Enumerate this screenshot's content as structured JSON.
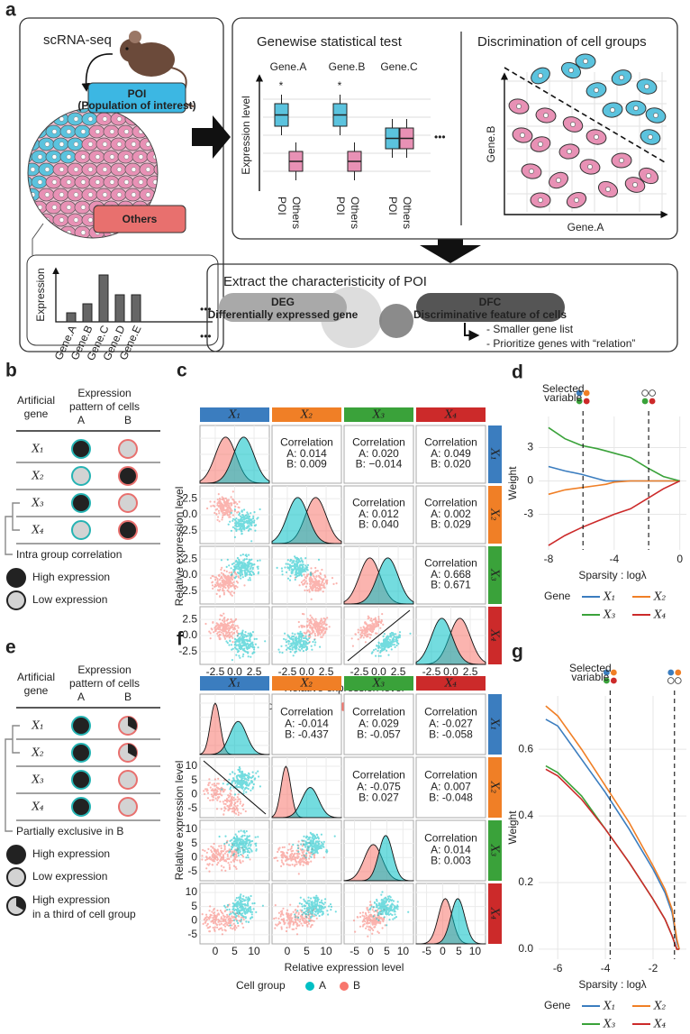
{
  "a": {
    "label": "a",
    "scrna": "scRNA-seq",
    "poi": "POI",
    "poi_note": "(Population of interest)",
    "others": "Others",
    "bar_axis": "Expression",
    "bar_genes": [
      "Gene.A",
      "Gene.B",
      "Gene.C",
      "Gene.D",
      "Gene.E"
    ],
    "more": "•••",
    "test_title": "Genewise statistical test",
    "test_axis": "Expression level",
    "test_genes": [
      "Gene.A",
      "Gene.B",
      "Gene.C"
    ],
    "star": "*",
    "groups": [
      "POI",
      "Others"
    ],
    "disc_title": "Discrimination of cell groups",
    "disc_x": "Gene.A",
    "disc_y": "Gene.B",
    "extract_title": "Extract the characteristicity of POI",
    "deg": "DEG",
    "deg_note": "Differentially expressed gene",
    "dfc": "DFC",
    "dfc_note": "Discriminative feature of cells",
    "bullets": [
      "- Smaller gene list",
      "- Prioritize genes with “relation”"
    ]
  },
  "b": {
    "label": "b",
    "gene_header": [
      "Artificial",
      "gene"
    ],
    "pattern_header": [
      "Expression",
      "pattern of cells"
    ],
    "groups": [
      "A",
      "B"
    ],
    "genes": [
      "X₁",
      "X₂",
      "X₃",
      "X₄"
    ],
    "note": "Intra group correlation",
    "legend": [
      "High expression",
      "Low expression"
    ]
  },
  "c": {
    "label": "c",
    "strips": [
      "X₁",
      "X₂",
      "X₃",
      "X₄"
    ],
    "corr_title": "Correlation",
    "corr": [
      [
        "A: 0.014",
        "B: 0.009"
      ],
      [
        "A: 0.020",
        "B: −0.014"
      ],
      [
        "A: 0.049",
        "B: 0.020"
      ],
      [
        "A: 0.012",
        "B: 0.040"
      ],
      [
        "A: 0.002",
        "B: 0.029"
      ],
      [
        "A: 0.668",
        "B: 0.671"
      ]
    ],
    "xticks": [
      [
        "-2.5",
        "0.0",
        "2.5"
      ],
      [
        "-2.5",
        "0.0",
        "2.5"
      ],
      [
        "-2.5",
        "0.0",
        "2.5"
      ],
      [
        "-2.5",
        "0.0",
        "2.5"
      ]
    ],
    "yticks": [
      "2.5",
      "0.0",
      "-2.5"
    ],
    "axis_label": "Relative expression level",
    "legend_title": "Cell group",
    "legend": [
      "A",
      "B"
    ]
  },
  "e": {
    "label": "e",
    "gene_header": [
      "Artificial",
      "gene"
    ],
    "pattern_header": [
      "Expression",
      "pattern of cells"
    ],
    "groups": [
      "A",
      "B"
    ],
    "genes": [
      "X₁",
      "X₂",
      "X₃",
      "X₄"
    ],
    "note": "Partially exclusive in B",
    "legend": [
      "High expression",
      "Low expression"
    ],
    "legend_third": [
      "High expression",
      "in a third of cell group"
    ]
  },
  "f": {
    "label": "f",
    "strips": [
      "X₁",
      "X₂",
      "X₃",
      "X₄"
    ],
    "corr_title": "Correlation",
    "corr": [
      [
        "A: -0.014",
        "B: -0.437"
      ],
      [
        "A: 0.029",
        "B: -0.057"
      ],
      [
        "A: -0.027",
        "B: -0.058"
      ],
      [
        "A: -0.075",
        "B: 0.027"
      ],
      [
        "A: 0.007",
        "B: -0.048"
      ],
      [
        "A: 0.014",
        "B: 0.003"
      ]
    ],
    "xticks": [
      [
        "0",
        "5",
        "10"
      ],
      [
        "0",
        "5",
        "10"
      ],
      [
        "-5",
        "0",
        "5",
        "10"
      ],
      [
        "-5",
        "0",
        "5",
        "10"
      ]
    ],
    "yticks": [
      "10",
      "5",
      "0",
      "-5"
    ],
    "axis_label": "Relative expression level",
    "legend_title": "Cell group",
    "legend": [
      "A",
      "B"
    ]
  },
  "chart_data": [
    {
      "type": "line",
      "panel": "d",
      "annotation": [
        "Selected",
        "variable"
      ],
      "xlabel": "Sparsity : logλ",
      "ylabel": "Weight",
      "legend_title": "Gene",
      "x": [
        -8,
        -7,
        -6,
        -5,
        -4.5,
        -4,
        -3,
        -2,
        -1,
        0
      ],
      "series": [
        {
          "name": "X₁",
          "color": "#3b7dbf",
          "values": [
            1.3,
            0.9,
            0.6,
            0.2,
            0,
            0,
            0,
            0,
            0,
            0
          ]
        },
        {
          "name": "X₂",
          "color": "#f07f26",
          "values": [
            -1.2,
            -0.8,
            -0.6,
            -0.4,
            -0.3,
            -0.1,
            0,
            0,
            0,
            0
          ]
        },
        {
          "name": "X₃",
          "color": "#3aa23a",
          "values": [
            4.8,
            3.8,
            3.2,
            2.9,
            2.7,
            2.5,
            2.1,
            1.2,
            0.4,
            0
          ]
        },
        {
          "name": "X₄",
          "color": "#cc2a2a",
          "values": [
            -5.8,
            -4.9,
            -4.2,
            -3.6,
            -3.3,
            -3.0,
            -2.5,
            -1.6,
            -0.7,
            0
          ]
        }
      ],
      "xlim": [
        -8.6,
        0.4
      ],
      "xticks": [
        -8,
        -4,
        0
      ],
      "ylim": [
        -6.2,
        5.8
      ],
      "yticks": [
        -3,
        0,
        3
      ],
      "vlines": [
        -5.9,
        -1.9
      ],
      "grid": true
    },
    {
      "type": "line",
      "panel": "g",
      "annotation": [
        "Selected",
        "variable"
      ],
      "xlabel": "Sparsity : logλ",
      "ylabel": "Weight",
      "legend_title": "Gene",
      "x": [
        -6.5,
        -6,
        -5,
        -4,
        -3,
        -2,
        -1.5,
        -1.2,
        -1,
        -0.9
      ],
      "series": [
        {
          "name": "X₁",
          "color": "#3b7dbf",
          "values": [
            0.69,
            0.67,
            0.57,
            0.47,
            0.36,
            0.24,
            0.17,
            0.11,
            0.02,
            0
          ]
        },
        {
          "name": "X₂",
          "color": "#f07f26",
          "values": [
            0.73,
            0.7,
            0.6,
            0.49,
            0.38,
            0.25,
            0.18,
            0.12,
            0.03,
            0
          ]
        },
        {
          "name": "X₃",
          "color": "#3aa23a",
          "values": [
            0.55,
            0.53,
            0.46,
            0.36,
            0.26,
            0.15,
            0.09,
            0.04,
            0,
            0
          ]
        },
        {
          "name": "X₄",
          "color": "#cc2a2a",
          "values": [
            0.54,
            0.52,
            0.45,
            0.36,
            0.26,
            0.15,
            0.09,
            0.04,
            0,
            0
          ]
        }
      ],
      "xlim": [
        -6.8,
        -0.6
      ],
      "xticks": [
        -6,
        -4,
        -2
      ],
      "ylim": [
        -0.03,
        0.76
      ],
      "yticks": [
        {
          "value": 0,
          "label": "0.0"
        },
        0.2,
        0.4,
        0.6
      ],
      "vlines": [
        -3.8,
        -1.1
      ],
      "grid": true
    }
  ]
}
